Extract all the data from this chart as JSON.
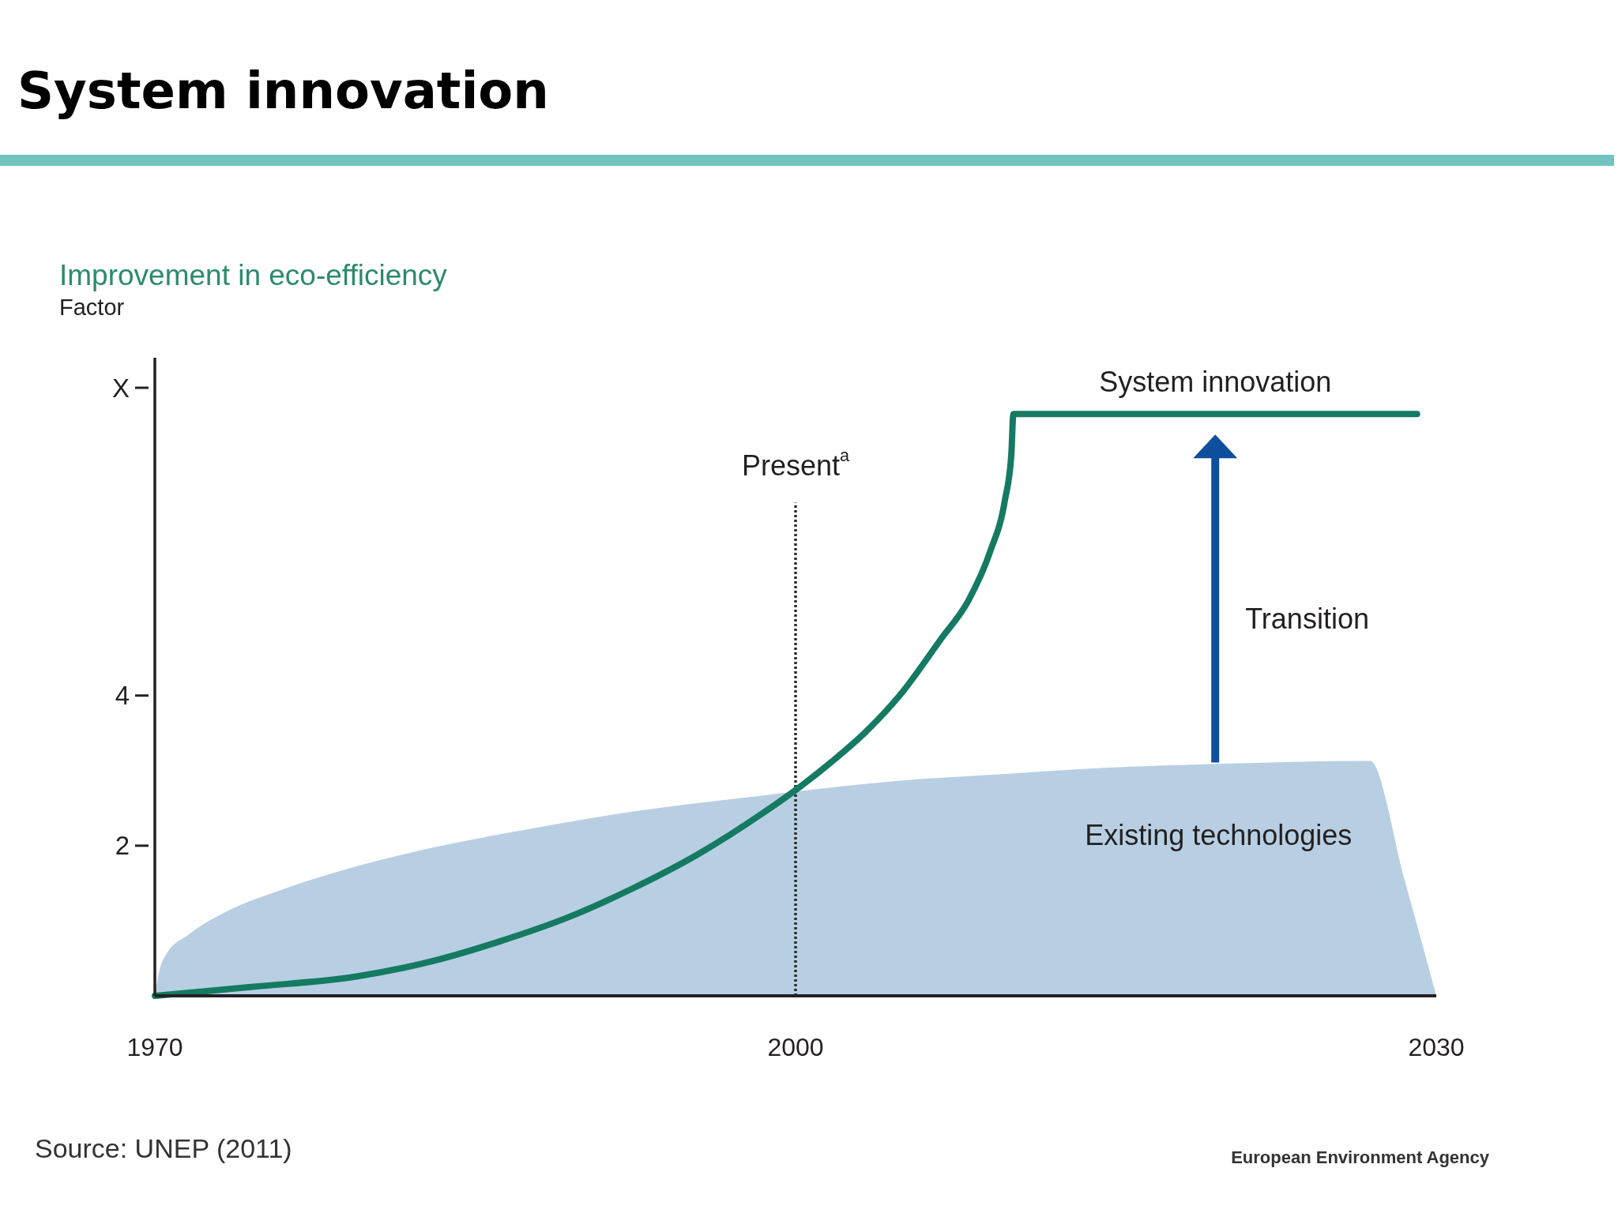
{
  "chart_data": {
    "type": "line",
    "title": "System innovation",
    "subtitle": "Improvement in eco-efficiency",
    "ylabel": "Factor",
    "xlim": [
      1970,
      2030
    ],
    "xticks": [
      1970,
      2000,
      2030
    ],
    "ylim": [
      0,
      8.5
    ],
    "yticks": [
      2,
      4,
      {
        "value": 8.1,
        "label": "X"
      }
    ],
    "series": [
      {
        "name": "Existing technologies",
        "type": "area",
        "color": "#b8cfe3",
        "x": [
          1970,
          1970.15,
          1970.5,
          1971.6,
          1973.4,
          1975.9,
          1979.5,
          1983.1,
          1986.5,
          1992.3,
          1998.5,
          2004.6,
          2009.5,
          2014.7,
          2019.8,
          2026.9,
          2028.5,
          2030
        ],
        "values": [
          0,
          0.26,
          0.54,
          0.82,
          1.13,
          1.41,
          1.73,
          1.98,
          2.17,
          2.45,
          2.67,
          2.86,
          2.95,
          3.04,
          3.09,
          3.13,
          1.56,
          0
        ]
      },
      {
        "name": "System innovation",
        "color": "#157a62",
        "x": [
          1970,
          1974.6,
          1979.5,
          1983.1,
          1986.2,
          1989.3,
          1992.3,
          1995.4,
          1998.5,
          2000,
          2001.7,
          2003.3,
          2004.9,
          2006.8,
          2008.1,
          2009.1,
          2009.8,
          2010.1,
          2010.2,
          2029.1
        ],
        "values": [
          0,
          0.12,
          0.26,
          0.47,
          0.73,
          1.04,
          1.42,
          1.88,
          2.44,
          2.74,
          3.12,
          3.52,
          4.01,
          4.75,
          5.27,
          5.91,
          6.6,
          7.2,
          7.75,
          7.75
        ]
      }
    ],
    "ref_lines": [
      {
        "axis": "x",
        "value": 2000,
        "label": "Present$^{a}$",
        "line_style": "dotted",
        "color": "#2b2b2b"
      }
    ],
    "annotations": [
      "Transition",
      "Source: UNEP (2011)",
      "European Environment Agency"
    ]
  }
}
